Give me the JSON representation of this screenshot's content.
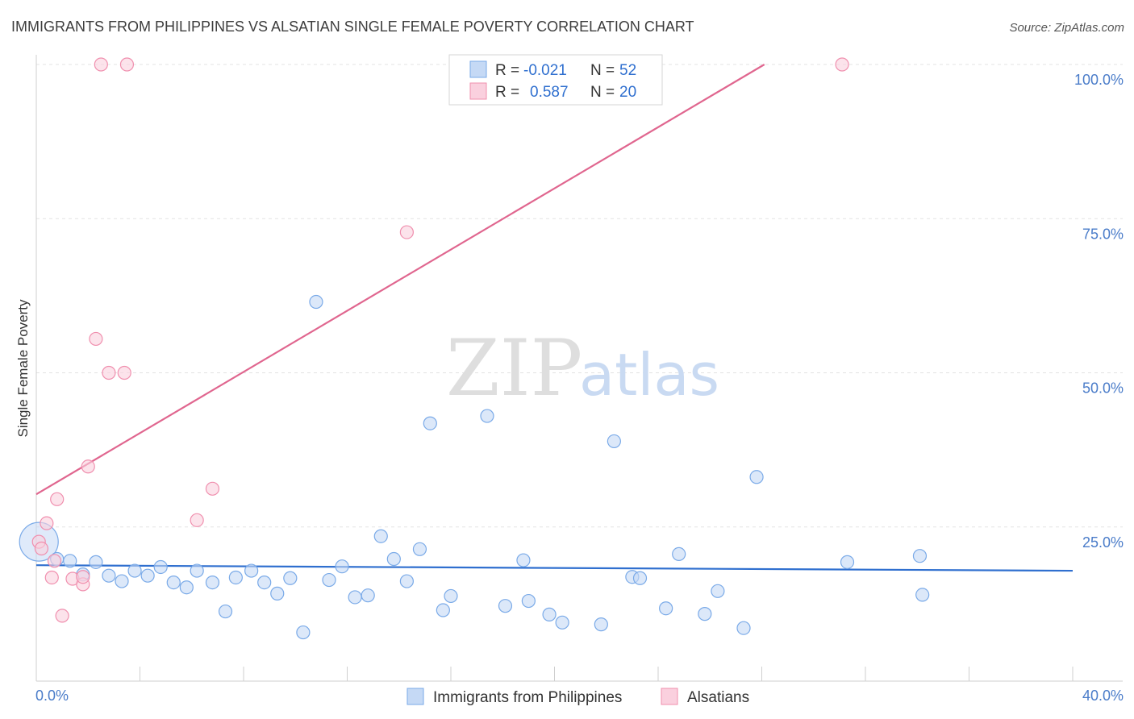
{
  "chart_data": {
    "type": "scatter",
    "title": "IMMIGRANTS FROM PHILIPPINES VS ALSATIAN SINGLE FEMALE POVERTY CORRELATION CHART",
    "source": "Source: ZipAtlas.com",
    "ylabel": "Single Female Poverty",
    "xlim": [
      0,
      40
    ],
    "ylim": [
      0,
      100
    ],
    "x_ticks": [
      "0.0%",
      "40.0%"
    ],
    "y_ticks": [
      {
        "value": 25,
        "label": "25.0%"
      },
      {
        "value": 50,
        "label": "50.0%"
      },
      {
        "value": 75,
        "label": "75.0%"
      },
      {
        "value": 100,
        "label": "100.0%"
      }
    ],
    "watermark": {
      "zip": "ZIP",
      "atlas": "atlas"
    },
    "legend": [
      {
        "r_label": "R =",
        "r_value": "-0.021",
        "n_label": "N =",
        "n_value": "52"
      },
      {
        "r_label": "R =",
        "r_value": "0.587",
        "n_label": "N =",
        "n_value": "20"
      }
    ],
    "series": [
      {
        "name": "Immigrants from Philippines",
        "color": "#7aaae8",
        "fill": "#c5d9f5",
        "trend": {
          "x": [
            0,
            40
          ],
          "y": [
            18.8,
            17.9
          ],
          "color": "#2f6fcf"
        },
        "points": [
          {
            "x": 0.1,
            "y": 22.6,
            "big": true
          },
          {
            "x": 0.8,
            "y": 19.8
          },
          {
            "x": 1.3,
            "y": 19.5
          },
          {
            "x": 1.8,
            "y": 17.3
          },
          {
            "x": 2.3,
            "y": 19.3
          },
          {
            "x": 2.8,
            "y": 17.1
          },
          {
            "x": 3.3,
            "y": 16.2
          },
          {
            "x": 3.8,
            "y": 17.9
          },
          {
            "x": 4.3,
            "y": 17.1
          },
          {
            "x": 4.8,
            "y": 18.5
          },
          {
            "x": 5.3,
            "y": 16.0
          },
          {
            "x": 5.8,
            "y": 15.2
          },
          {
            "x": 6.2,
            "y": 17.9
          },
          {
            "x": 6.8,
            "y": 16.0
          },
          {
            "x": 7.3,
            "y": 11.3
          },
          {
            "x": 7.7,
            "y": 16.8
          },
          {
            "x": 8.3,
            "y": 17.9
          },
          {
            "x": 8.8,
            "y": 16.0
          },
          {
            "x": 9.3,
            "y": 14.2
          },
          {
            "x": 9.8,
            "y": 16.7
          },
          {
            "x": 10.3,
            "y": 7.9
          },
          {
            "x": 10.8,
            "y": 61.5
          },
          {
            "x": 11.3,
            "y": 16.4
          },
          {
            "x": 11.8,
            "y": 18.6
          },
          {
            "x": 12.3,
            "y": 13.6
          },
          {
            "x": 12.8,
            "y": 13.9
          },
          {
            "x": 13.3,
            "y": 23.5
          },
          {
            "x": 13.8,
            "y": 19.8
          },
          {
            "x": 14.3,
            "y": 16.2
          },
          {
            "x": 14.8,
            "y": 21.4
          },
          {
            "x": 15.2,
            "y": 41.8
          },
          {
            "x": 15.7,
            "y": 11.5
          },
          {
            "x": 16.0,
            "y": 13.8
          },
          {
            "x": 17.4,
            "y": 43.0
          },
          {
            "x": 18.1,
            "y": 12.2
          },
          {
            "x": 18.8,
            "y": 19.6
          },
          {
            "x": 19.0,
            "y": 13.0
          },
          {
            "x": 19.8,
            "y": 10.8
          },
          {
            "x": 20.3,
            "y": 9.5
          },
          {
            "x": 21.8,
            "y": 9.2
          },
          {
            "x": 22.3,
            "y": 38.9
          },
          {
            "x": 23.0,
            "y": 16.9
          },
          {
            "x": 23.3,
            "y": 16.7
          },
          {
            "x": 24.3,
            "y": 11.8
          },
          {
            "x": 24.8,
            "y": 20.6
          },
          {
            "x": 25.8,
            "y": 10.9
          },
          {
            "x": 26.3,
            "y": 14.6
          },
          {
            "x": 27.3,
            "y": 8.6
          },
          {
            "x": 27.8,
            "y": 33.1
          },
          {
            "x": 31.3,
            "y": 19.3
          },
          {
            "x": 34.1,
            "y": 20.3
          },
          {
            "x": 34.2,
            "y": 14.0
          }
        ]
      },
      {
        "name": "Alsatians",
        "color": "#f08fae",
        "fill": "#fad0de",
        "trend": {
          "x": [
            0,
            28.1
          ],
          "y": [
            30.3,
            100
          ],
          "color": "#e0668f"
        },
        "points": [
          {
            "x": 0.1,
            "y": 22.6
          },
          {
            "x": 0.4,
            "y": 25.6
          },
          {
            "x": 0.6,
            "y": 16.8
          },
          {
            "x": 0.8,
            "y": 29.5
          },
          {
            "x": 0.7,
            "y": 19.5
          },
          {
            "x": 1.0,
            "y": 10.6
          },
          {
            "x": 1.4,
            "y": 16.6
          },
          {
            "x": 1.8,
            "y": 15.7
          },
          {
            "x": 1.8,
            "y": 16.9
          },
          {
            "x": 2.0,
            "y": 34.8
          },
          {
            "x": 2.3,
            "y": 55.5
          },
          {
            "x": 2.5,
            "y": 100
          },
          {
            "x": 2.8,
            "y": 50.0
          },
          {
            "x": 3.4,
            "y": 50.0
          },
          {
            "x": 3.5,
            "y": 100
          },
          {
            "x": 6.2,
            "y": 26.1
          },
          {
            "x": 6.8,
            "y": 31.2
          },
          {
            "x": 14.3,
            "y": 72.8
          },
          {
            "x": 31.1,
            "y": 100
          },
          {
            "x": 0.2,
            "y": 21.5
          }
        ]
      }
    ]
  }
}
